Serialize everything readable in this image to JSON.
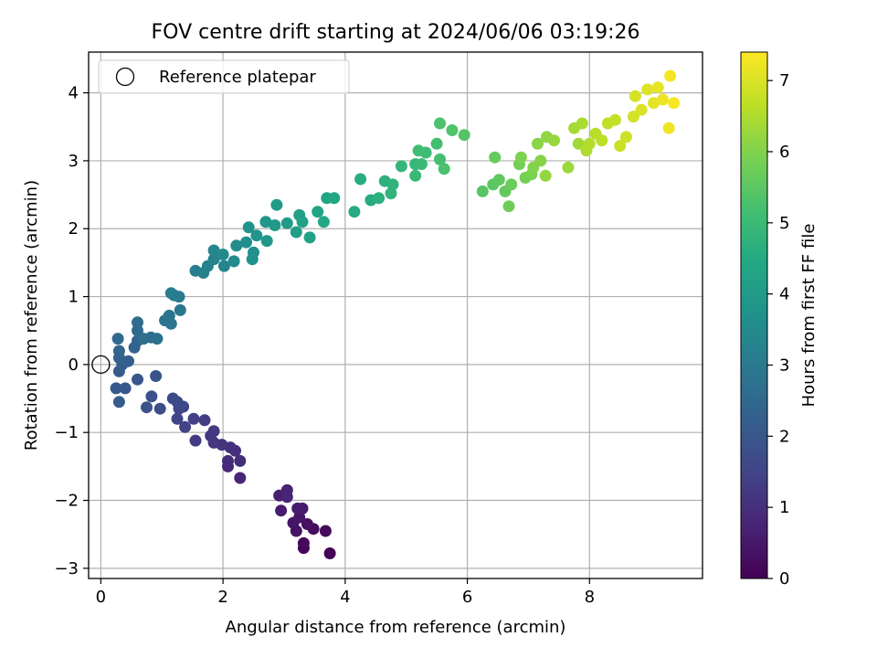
{
  "chart_data": {
    "type": "scatter",
    "title": "FOV centre drift starting at 2024/06/06 03:19:26",
    "xlabel": "Angular distance from reference (arcmin)",
    "ylabel": "Rotation from reference (arcmin)",
    "colorbar_label": "Hours from first FF file",
    "xlim": [
      -0.2,
      9.85
    ],
    "ylim": [
      -3.15,
      4.6
    ],
    "xticks": [
      0,
      2,
      4,
      6,
      8
    ],
    "yticks": [
      -3,
      -2,
      -1,
      0,
      1,
      2,
      3,
      4
    ],
    "colorbar_range": [
      0,
      7.4
    ],
    "colorbar_ticks": [
      0,
      1,
      2,
      3,
      4,
      5,
      6,
      7
    ],
    "colormap": "viridis",
    "grid": true,
    "legend": {
      "placement": "top-left",
      "entry": "Reference platepar"
    },
    "reference_point": {
      "x": 0,
      "y": 0
    },
    "points": [
      [
        3.75,
        -2.78,
        0.05
      ],
      [
        3.32,
        -2.7,
        0.1
      ],
      [
        3.32,
        -2.63,
        0.15
      ],
      [
        3.68,
        -2.45,
        0.2
      ],
      [
        3.48,
        -2.42,
        0.25
      ],
      [
        3.38,
        -2.35,
        0.3
      ],
      [
        3.2,
        -2.45,
        0.35
      ],
      [
        3.15,
        -2.33,
        0.4
      ],
      [
        3.25,
        -2.25,
        0.45
      ],
      [
        3.3,
        -2.12,
        0.5
      ],
      [
        3.22,
        -2.12,
        0.55
      ],
      [
        2.95,
        -2.15,
        0.6
      ],
      [
        2.92,
        -1.93,
        0.65
      ],
      [
        3.05,
        -1.85,
        0.7
      ],
      [
        3.05,
        -1.95,
        0.75
      ],
      [
        2.28,
        -1.67,
        0.8
      ],
      [
        2.08,
        -1.5,
        0.85
      ],
      [
        2.08,
        -1.42,
        0.9
      ],
      [
        2.28,
        -1.42,
        0.95
      ],
      [
        2.2,
        -1.27,
        1.0
      ],
      [
        2.12,
        -1.22,
        1.05
      ],
      [
        1.98,
        -1.18,
        1.1
      ],
      [
        1.85,
        -1.15,
        1.15
      ],
      [
        1.8,
        -1.05,
        1.2
      ],
      [
        1.85,
        -0.98,
        1.25
      ],
      [
        1.55,
        -1.12,
        1.3
      ],
      [
        1.7,
        -0.82,
        1.35
      ],
      [
        1.52,
        -0.8,
        1.4
      ],
      [
        1.38,
        -0.92,
        1.45
      ],
      [
        1.25,
        -0.8,
        1.5
      ],
      [
        1.28,
        -0.65,
        1.55
      ],
      [
        1.35,
        -0.62,
        1.6
      ],
      [
        1.25,
        -0.55,
        1.65
      ],
      [
        1.18,
        -0.5,
        1.7
      ],
      [
        0.97,
        -0.65,
        1.75
      ],
      [
        0.83,
        -0.47,
        1.8
      ],
      [
        0.75,
        -0.63,
        1.85
      ],
      [
        0.9,
        -0.17,
        1.9
      ],
      [
        0.6,
        -0.22,
        1.95
      ],
      [
        0.4,
        -0.35,
        2.0
      ],
      [
        0.25,
        -0.35,
        2.05
      ],
      [
        0.3,
        -0.55,
        2.1
      ],
      [
        0.3,
        -0.1,
        2.15
      ],
      [
        0.35,
        0.0,
        2.2
      ],
      [
        0.45,
        0.05,
        2.25
      ],
      [
        0.3,
        0.1,
        2.3
      ],
      [
        0.55,
        0.25,
        2.35
      ],
      [
        0.6,
        0.35,
        2.4
      ],
      [
        0.3,
        0.2,
        2.45
      ],
      [
        0.28,
        0.38,
        2.5
      ],
      [
        0.6,
        0.5,
        2.55
      ],
      [
        0.6,
        0.62,
        2.6
      ],
      [
        0.82,
        0.4,
        2.65
      ],
      [
        0.7,
        0.38,
        2.7
      ],
      [
        0.92,
        0.38,
        2.75
      ],
      [
        1.05,
        0.65,
        2.8
      ],
      [
        1.12,
        0.72,
        2.85
      ],
      [
        1.15,
        0.6,
        2.9
      ],
      [
        1.3,
        0.8,
        2.95
      ],
      [
        1.2,
        1.02,
        3.0
      ],
      [
        1.28,
        1.0,
        3.05
      ],
      [
        1.15,
        1.05,
        3.1
      ],
      [
        1.55,
        1.38,
        3.15
      ],
      [
        1.68,
        1.35,
        3.2
      ],
      [
        1.75,
        1.45,
        3.25
      ],
      [
        1.85,
        1.55,
        3.3
      ],
      [
        2.02,
        1.45,
        3.35
      ],
      [
        1.85,
        1.68,
        3.4
      ],
      [
        2.0,
        1.62,
        3.45
      ],
      [
        2.18,
        1.52,
        3.5
      ],
      [
        2.22,
        1.75,
        3.55
      ],
      [
        2.38,
        1.8,
        3.6
      ],
      [
        2.5,
        1.65,
        3.65
      ],
      [
        2.48,
        1.55,
        3.7
      ],
      [
        2.42,
        2.02,
        3.75
      ],
      [
        2.55,
        1.9,
        3.8
      ],
      [
        2.7,
        2.1,
        3.85
      ],
      [
        2.72,
        1.82,
        3.9
      ],
      [
        2.85,
        2.05,
        3.95
      ],
      [
        2.88,
        2.35,
        4.0
      ],
      [
        3.05,
        2.08,
        4.05
      ],
      [
        3.2,
        1.95,
        4.1
      ],
      [
        3.25,
        2.2,
        4.15
      ],
      [
        3.3,
        2.1,
        4.2
      ],
      [
        3.42,
        1.87,
        4.25
      ],
      [
        3.55,
        2.25,
        4.3
      ],
      [
        3.7,
        2.45,
        4.35
      ],
      [
        3.82,
        2.45,
        4.4
      ],
      [
        3.65,
        2.1,
        4.45
      ],
      [
        4.15,
        2.25,
        4.5
      ],
      [
        4.42,
        2.42,
        4.55
      ],
      [
        4.25,
        2.73,
        4.6
      ],
      [
        4.55,
        2.45,
        4.65
      ],
      [
        4.65,
        2.7,
        4.7
      ],
      [
        4.78,
        2.65,
        4.75
      ],
      [
        4.75,
        2.52,
        4.8
      ],
      [
        4.92,
        2.92,
        4.85
      ],
      [
        5.15,
        2.95,
        4.9
      ],
      [
        5.15,
        2.78,
        4.95
      ],
      [
        5.25,
        2.95,
        5.0
      ],
      [
        5.32,
        3.12,
        5.05
      ],
      [
        5.2,
        3.15,
        5.1
      ],
      [
        5.5,
        3.25,
        5.15
      ],
      [
        5.55,
        3.02,
        5.2
      ],
      [
        5.62,
        2.88,
        5.25
      ],
      [
        5.55,
        3.55,
        5.3
      ],
      [
        5.75,
        3.45,
        5.35
      ],
      [
        5.95,
        3.38,
        5.4
      ],
      [
        6.25,
        2.55,
        5.45
      ],
      [
        6.42,
        2.65,
        5.5
      ],
      [
        6.52,
        2.72,
        5.55
      ],
      [
        6.62,
        2.55,
        5.6
      ],
      [
        6.45,
        3.05,
        5.65
      ],
      [
        6.72,
        2.65,
        5.7
      ],
      [
        6.68,
        2.33,
        5.75
      ],
      [
        6.85,
        2.95,
        5.8
      ],
      [
        6.95,
        2.75,
        5.85
      ],
      [
        7.05,
        2.8,
        5.9
      ],
      [
        6.88,
        3.05,
        5.95
      ],
      [
        7.08,
        2.9,
        6.0
      ],
      [
        7.2,
        3.0,
        6.05
      ],
      [
        7.15,
        3.25,
        6.1
      ],
      [
        7.3,
        3.35,
        6.15
      ],
      [
        7.28,
        2.78,
        6.2
      ],
      [
        7.42,
        3.3,
        6.25
      ],
      [
        7.65,
        2.9,
        6.3
      ],
      [
        7.82,
        3.25,
        6.35
      ],
      [
        7.75,
        3.48,
        6.4
      ],
      [
        7.88,
        3.55,
        6.45
      ],
      [
        7.95,
        3.15,
        6.5
      ],
      [
        8.0,
        3.25,
        6.55
      ],
      [
        8.1,
        3.4,
        6.6
      ],
      [
        8.2,
        3.3,
        6.65
      ],
      [
        8.3,
        3.55,
        6.7
      ],
      [
        8.42,
        3.6,
        6.75
      ],
      [
        8.5,
        3.22,
        6.8
      ],
      [
        8.6,
        3.35,
        6.85
      ],
      [
        8.72,
        3.65,
        6.9
      ],
      [
        8.75,
        3.95,
        6.95
      ],
      [
        8.85,
        3.75,
        7.0
      ],
      [
        8.95,
        4.05,
        7.05
      ],
      [
        9.05,
        3.85,
        7.1
      ],
      [
        9.12,
        4.08,
        7.15
      ],
      [
        9.2,
        3.9,
        7.2
      ],
      [
        9.3,
        3.48,
        7.25
      ],
      [
        9.32,
        4.25,
        7.3
      ],
      [
        9.38,
        3.85,
        7.35
      ]
    ]
  }
}
